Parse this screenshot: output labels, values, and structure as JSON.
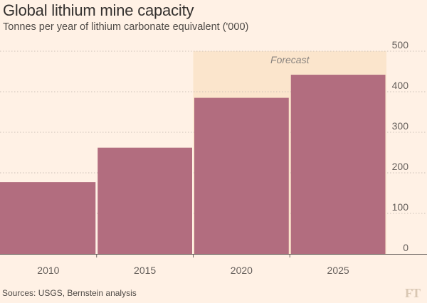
{
  "title": "Global lithium mine capacity",
  "subtitle": "Tonnes per year of lithium carbonate equivalent ('000)",
  "source": "Sources: USGS, Bernstein analysis",
  "logo_text": "FT",
  "colors": {
    "background": "#fff1e5",
    "bar": "#b26d7f",
    "forecast_band": "#fbe5cc",
    "grid": "#ccc1b7",
    "axis": "#66605c"
  },
  "chart_data": {
    "type": "bar",
    "categories": [
      "2010",
      "2015",
      "2020",
      "2025"
    ],
    "values": [
      177,
      262,
      385,
      442
    ],
    "ylim": [
      0,
      500
    ],
    "yticks": [
      0,
      100,
      200,
      300,
      400,
      500
    ],
    "y_axis_position": "right",
    "grid": true,
    "grid_style": "dotted",
    "annotation": {
      "text": "Forecast",
      "categories": [
        "2020",
        "2025"
      ]
    }
  }
}
